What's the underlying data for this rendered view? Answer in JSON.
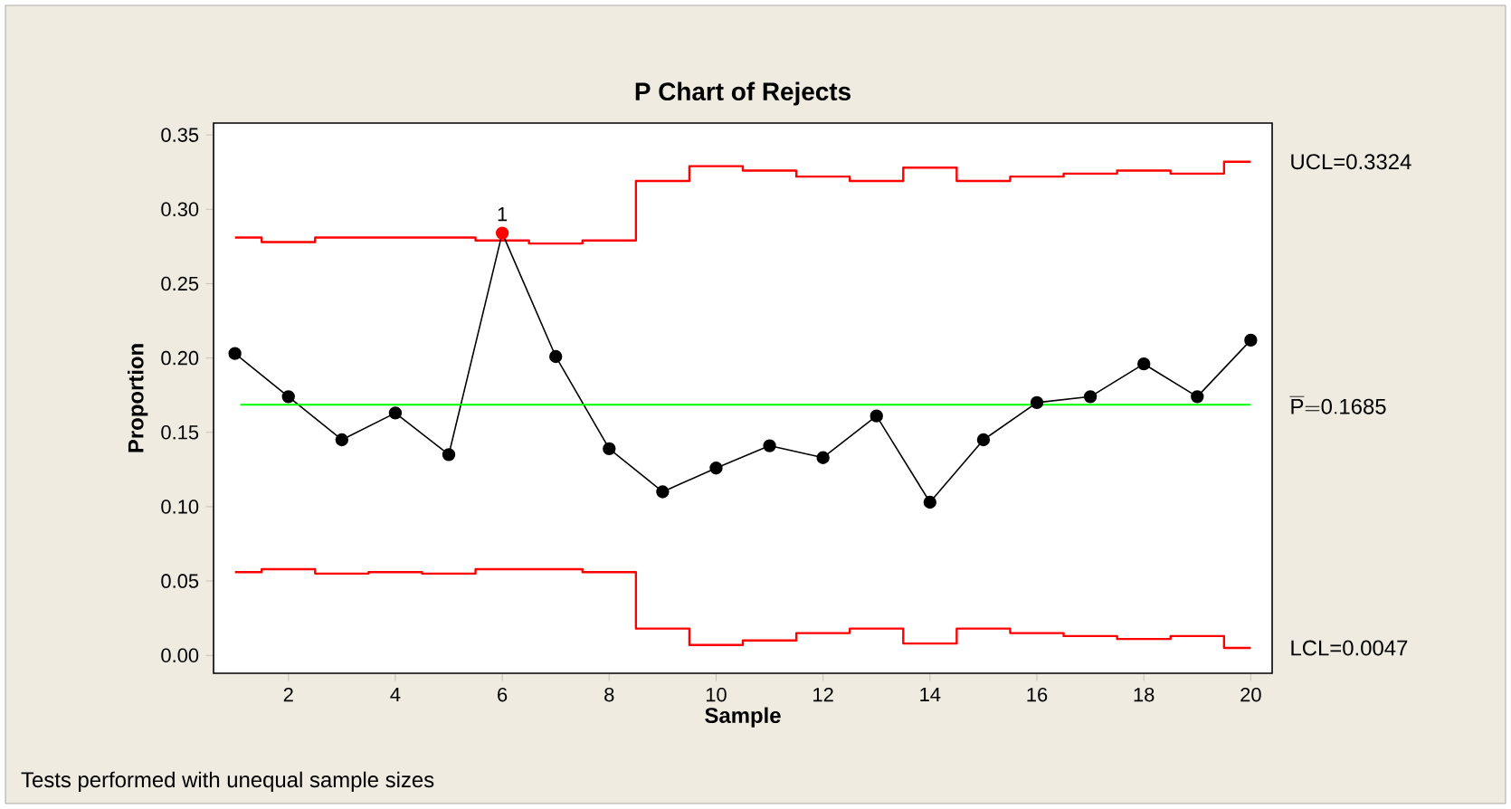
{
  "chart_data": {
    "type": "line",
    "title": "P Chart of Rejects",
    "xlabel": "Sample",
    "ylabel": "Proportion",
    "x": [
      1,
      2,
      3,
      4,
      5,
      6,
      7,
      8,
      9,
      10,
      11,
      12,
      13,
      14,
      15,
      16,
      17,
      18,
      19,
      20
    ],
    "xlim": [
      0.6,
      20.4
    ],
    "xticks": [
      2,
      4,
      6,
      8,
      10,
      12,
      14,
      16,
      18,
      20
    ],
    "ylim": [
      -0.012,
      0.358
    ],
    "yticks": [
      {
        "value": 0,
        "label": "0.00"
      },
      {
        "value": 0.05,
        "label": "0.05"
      },
      {
        "value": 0.1,
        "label": "0.10"
      },
      {
        "value": 0.15,
        "label": "0.15"
      },
      {
        "value": 0.2,
        "label": "0.20"
      },
      {
        "value": 0.25,
        "label": "0.25"
      },
      {
        "value": 0.3,
        "label": "0.30"
      },
      {
        "value": 0.35,
        "label": "0.35"
      }
    ],
    "series": [
      {
        "type": "step",
        "name": "UCL=0.3324",
        "color": "#ff0000",
        "values": [
          0.281,
          0.278,
          0.281,
          0.281,
          0.281,
          0.279,
          0.277,
          0.279,
          0.319,
          0.329,
          0.326,
          0.322,
          0.319,
          0.328,
          0.319,
          0.322,
          0.324,
          0.326,
          0.324,
          0.332
        ]
      },
      {
        "type": "step",
        "name": "LCL=0.0047",
        "color": "#ff0000",
        "values": [
          0.056,
          0.058,
          0.055,
          0.056,
          0.055,
          0.058,
          0.058,
          0.056,
          0.018,
          0.007,
          0.01,
          0.015,
          0.018,
          0.008,
          0.018,
          0.015,
          0.013,
          0.011,
          0.013,
          0.005
        ]
      },
      {
        "color": "#000000",
        "marker": "circle",
        "colors": [
          "#000000",
          "#000000",
          "#000000",
          "#000000",
          "#000000",
          "#ff0000",
          "#000000",
          "#000000",
          "#000000",
          "#000000",
          "#000000",
          "#000000",
          "#000000",
          "#000000",
          "#000000",
          "#000000",
          "#000000",
          "#000000",
          "#000000",
          "#000000"
        ],
        "values": [
          0.203,
          0.174,
          0.145,
          0.163,
          0.135,
          0.284,
          0.201,
          0.139,
          0.11,
          0.126,
          0.141,
          0.133,
          0.161,
          0.103,
          0.145,
          0.17,
          0.174,
          0.196,
          0.174,
          0.212
        ]
      }
    ],
    "ref_lines": [
      {
        "axis": "y",
        "value": 0.1685,
        "label": "\\overline{\\mathrm{P}}\\mathrm{{=}0.1685}",
        "color": "#00ff00"
      }
    ],
    "annotations": [
      {
        "text": "1",
        "x": 6,
        "y": 0.284
      },
      "Tests performed with unequal sample sizes"
    ],
    "grid": false
  }
}
